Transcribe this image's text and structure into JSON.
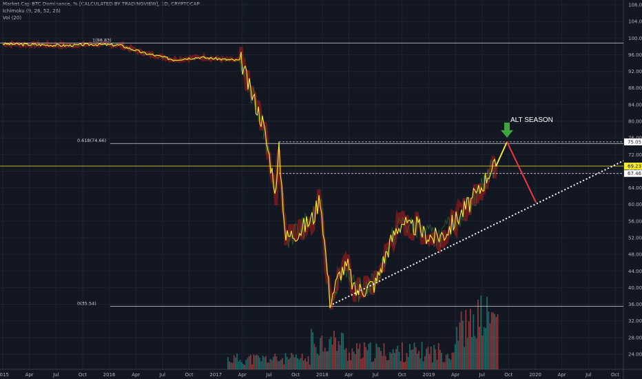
{
  "header": {
    "title": "Market Cap BTC Dominance, % [CALCULATED BY TRADINGVIEW], 1D, CRYPTOCAP",
    "indicator1": "Ichimoku (9, 26, 52, 26)",
    "indicator2": "Vol (20)"
  },
  "chart_data": {
    "type": "line",
    "ylim": [
      22,
      108
    ],
    "y_ticks": [
      "108.00",
      "104.00",
      "100.00",
      "96.00",
      "92.00",
      "88.00",
      "84.00",
      "80.00",
      "76.00",
      "72.00",
      "68.00",
      "64.00",
      "60.00",
      "56.00",
      "52.00",
      "48.00",
      "44.00",
      "40.00",
      "36.00",
      "32.00",
      "28.00",
      "24.00"
    ],
    "x_ticks": [
      "2015",
      "Apr",
      "Jul",
      "Oct",
      "2016",
      "Apr",
      "Jul",
      "Oct",
      "2017",
      "Apr",
      "Jul",
      "Oct",
      "2018",
      "Apr",
      "Jul",
      "Oct",
      "2019",
      "Apr",
      "Jul",
      "Oct",
      "2020",
      "Apr",
      "Jul",
      "Oct"
    ],
    "fib_levels": [
      {
        "label": "1(98.83)",
        "value": 98.83
      },
      {
        "label": "0.618(74.66)",
        "value": 74.66
      },
      {
        "label": "0(35.54)",
        "value": 35.54
      }
    ],
    "price_labels": [
      {
        "text": "75.05",
        "value": 75.05,
        "color": "#ffffff",
        "text_color": "#131722"
      },
      {
        "text": "69.23",
        "value": 69.23,
        "color": "#f5eb35",
        "text_color": "#131722"
      },
      {
        "text": "67.46",
        "value": 67.46,
        "color": "#ffffff",
        "text_color": "#131722"
      }
    ],
    "series": [
      {
        "color": "#f5eb35",
        "points": [
          [
            "2015",
            98.6
          ],
          [
            "Apr",
            98.4
          ],
          [
            "Jul",
            98.2
          ],
          [
            "Oct",
            98.5
          ],
          [
            "2016",
            98.3
          ],
          [
            "Feb",
            97.2
          ],
          [
            "Apr",
            96.2
          ],
          [
            "Jun",
            95.6
          ],
          [
            "Jul",
            94.8
          ],
          [
            "Oct",
            95.4
          ],
          [
            "2017",
            94.8
          ],
          [
            "Feb",
            94.6
          ],
          [
            "Mar",
            88
          ],
          [
            "Apr",
            80
          ],
          [
            "May",
            68
          ],
          [
            "Jun",
            63
          ],
          [
            "Jul",
            73
          ],
          [
            "Aug",
            52
          ],
          [
            "Oct",
            54
          ],
          [
            "Nov",
            57
          ],
          [
            "Dec",
            62
          ],
          [
            "2018",
            37
          ],
          [
            "Feb",
            44
          ],
          [
            "Mar",
            45
          ],
          [
            "Apr",
            39
          ],
          [
            "May",
            40
          ],
          [
            "Jun",
            41
          ],
          [
            "Jul",
            48
          ],
          [
            "Aug",
            54
          ],
          [
            "Sep",
            56
          ],
          [
            "Oct",
            54
          ],
          [
            "Nov",
            55
          ],
          [
            "Dec",
            53
          ],
          [
            "2019",
            52
          ],
          [
            "Mar",
            53
          ],
          [
            "Apr",
            56
          ],
          [
            "May",
            60
          ],
          [
            "Jun",
            63
          ],
          [
            "Jul",
            68
          ],
          [
            "Jul-end",
            69.2
          ]
        ]
      }
    ],
    "annotations": [
      {
        "text": "ALT SEASON",
        "color": "#ffffff"
      },
      {
        "type": "arrow-down",
        "color": "#3fa33f"
      },
      {
        "type": "projection-up",
        "color": "#f5eb35",
        "from": 69.2,
        "to": 75.05
      },
      {
        "type": "projection-down",
        "color": "#f23645",
        "from": 75.05,
        "to": 60.5
      },
      {
        "type": "trendline",
        "color": "#ffffff",
        "style": "dotted",
        "from": 36,
        "to": 70.5
      }
    ]
  },
  "colors": {
    "background": "#131722",
    "grid": "#1f2430",
    "price": "#f5eb35",
    "cloud_green": "#2e7d32",
    "cloud_red": "#b71c1c",
    "volume_up": "#26a69a",
    "volume_down": "#ef5350"
  }
}
